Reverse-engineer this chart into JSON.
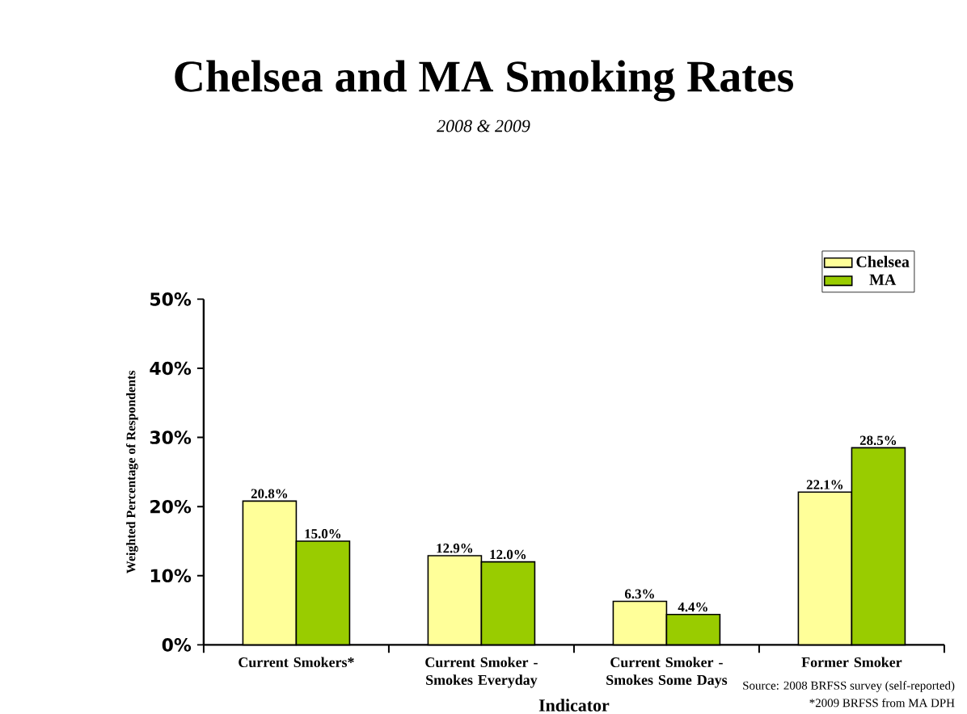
{
  "chart_data": {
    "type": "bar",
    "title": "Chelsea and MA Smoking Rates",
    "subtitle": "2008 & 2009",
    "xlabel": "Indicator",
    "ylabel": "Weighted Percentage of Respondents",
    "categories": [
      "Current Smokers*",
      "Current Smoker - Smokes Everyday",
      "Current Smoker - Smokes Some Days",
      "Former Smoker"
    ],
    "series": [
      {
        "name": "Chelsea",
        "color": "#ffff99",
        "values": [
          20.8,
          12.9,
          6.3,
          22.1
        ],
        "value_labels": [
          "20.8%",
          "12.9%",
          "6.3%",
          "22.1%"
        ]
      },
      {
        "name": "MA",
        "color": "#99cc00",
        "values": [
          15.0,
          12.0,
          4.4,
          28.5
        ],
        "value_labels": [
          "15.0%",
          "12.0%",
          "4.4%",
          "28.5%"
        ]
      }
    ],
    "ylim": [
      0,
      50
    ],
    "yticks": [
      {
        "value": 0,
        "label": "0%"
      },
      {
        "value": 10,
        "label": "10%"
      },
      {
        "value": 20,
        "label": "20%"
      },
      {
        "value": 30,
        "label": "30%"
      },
      {
        "value": 40,
        "label": "40%"
      },
      {
        "value": 50,
        "label": "50%"
      }
    ],
    "legend": "top right",
    "grid": false,
    "annotations": [
      "Source: 2008 BRFSS survey (self-reported)",
      "*2009 BRFSS from MA DPH"
    ]
  }
}
